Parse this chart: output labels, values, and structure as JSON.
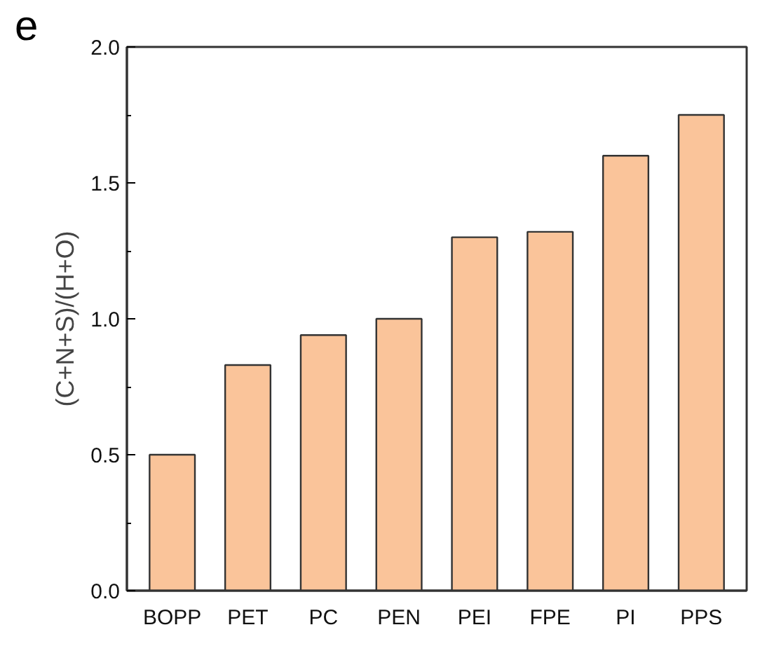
{
  "chart_data": {
    "type": "bar",
    "categories": [
      "BOPP",
      "PET",
      "PC",
      "PEN",
      "PEI",
      "FPE",
      "PI",
      "PPS"
    ],
    "values": [
      0.5,
      0.83,
      0.94,
      1.0,
      1.3,
      1.32,
      1.6,
      1.75
    ],
    "color": "#fac49a",
    "ylabel": "(C+N+S)/(H+O)",
    "ylim": [
      0,
      2.0
    ],
    "yticks": [
      {
        "value": 0,
        "label": "0.0"
      },
      {
        "value": 0.5,
        "label": "0.5"
      },
      {
        "value": 1,
        "label": "1.0"
      },
      {
        "value": 1.5,
        "label": "1.5"
      },
      {
        "value": 2,
        "label": "2.0"
      }
    ],
    "annotations": [
      "e"
    ],
    "grid": false
  }
}
